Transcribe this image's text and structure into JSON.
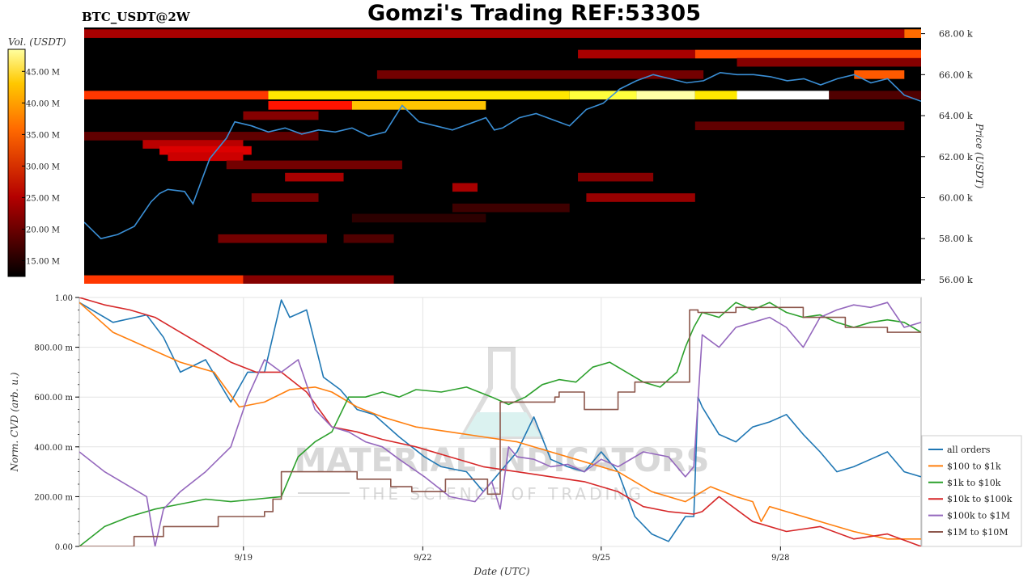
{
  "header": {
    "symbol_label": "BTC_USDT@2W",
    "title": "Gomzi's Trading REF:53305"
  },
  "colorbar": {
    "label": "Vol. (USDT)",
    "ticks": [
      "45.00 M",
      "40.00 M",
      "35.00 M",
      "30.00 M",
      "25.00 M",
      "20.00 M",
      "15.00 M"
    ],
    "tick_values": [
      45,
      40,
      35,
      30,
      25,
      20,
      15
    ],
    "range": [
      12.5,
      48.5
    ]
  },
  "watermark": {
    "line1": "MATERIAL INDICATORS",
    "line2": "THE SCIENCE OF TRADING"
  },
  "chart_data": [
    {
      "type": "heatmap",
      "title": "",
      "ylabel": "Price (USDT)",
      "ylim": [
        55.8,
        68.3
      ],
      "y_tick_labels": [
        "68.00 k",
        "66.00 k",
        "64.00 k",
        "62.00 k",
        "60.00 k",
        "58.00 k",
        "56.00 k"
      ],
      "y_tick_values": [
        68,
        66,
        64,
        62,
        60,
        58,
        56
      ],
      "colormap": "hot",
      "bands": [
        {
          "price": 68.0,
          "from": 0.0,
          "to": 0.98,
          "vol": 22
        },
        {
          "price": 68.0,
          "from": 0.98,
          "to": 1.0,
          "vol": 33
        },
        {
          "price": 67.0,
          "from": 0.59,
          "to": 0.73,
          "vol": 22
        },
        {
          "price": 67.0,
          "from": 0.73,
          "to": 1.0,
          "vol": 31
        },
        {
          "price": 66.6,
          "from": 0.78,
          "to": 1.0,
          "vol": 20
        },
        {
          "price": 66.0,
          "from": 0.35,
          "to": 0.74,
          "vol": 19
        },
        {
          "price": 66.0,
          "from": 0.92,
          "to": 0.98,
          "vol": 32
        },
        {
          "price": 65.0,
          "from": 0.0,
          "to": 0.22,
          "vol": 30
        },
        {
          "price": 65.0,
          "from": 0.22,
          "to": 0.58,
          "vol": 40
        },
        {
          "price": 65.0,
          "from": 0.58,
          "to": 0.66,
          "vol": 43
        },
        {
          "price": 65.0,
          "from": 0.66,
          "to": 0.73,
          "vol": 46
        },
        {
          "price": 65.0,
          "from": 0.73,
          "to": 0.78,
          "vol": 40
        },
        {
          "price": 65.0,
          "from": 0.78,
          "to": 0.89,
          "vol": 48.5
        },
        {
          "price": 65.0,
          "from": 0.89,
          "to": 1.0,
          "vol": 17
        },
        {
          "price": 64.5,
          "from": 0.22,
          "to": 0.32,
          "vol": 28
        },
        {
          "price": 64.5,
          "from": 0.32,
          "to": 0.48,
          "vol": 38
        },
        {
          "price": 64.0,
          "from": 0.19,
          "to": 0.28,
          "vol": 20
        },
        {
          "price": 63.5,
          "from": 0.73,
          "to": 0.98,
          "vol": 18
        },
        {
          "price": 63.0,
          "from": 0.0,
          "to": 0.28,
          "vol": 18
        },
        {
          "price": 62.6,
          "from": 0.07,
          "to": 0.19,
          "vol": 23
        },
        {
          "price": 62.3,
          "from": 0.09,
          "to": 0.2,
          "vol": 25
        },
        {
          "price": 62.0,
          "from": 0.1,
          "to": 0.19,
          "vol": 24
        },
        {
          "price": 61.6,
          "from": 0.17,
          "to": 0.38,
          "vol": 19
        },
        {
          "price": 61.0,
          "from": 0.24,
          "to": 0.31,
          "vol": 22
        },
        {
          "price": 61.0,
          "from": 0.59,
          "to": 0.68,
          "vol": 20
        },
        {
          "price": 60.5,
          "from": 0.44,
          "to": 0.47,
          "vol": 22
        },
        {
          "price": 60.0,
          "from": 0.2,
          "to": 0.28,
          "vol": 19
        },
        {
          "price": 60.0,
          "from": 0.6,
          "to": 0.73,
          "vol": 21
        },
        {
          "price": 59.5,
          "from": 0.44,
          "to": 0.58,
          "vol": 16
        },
        {
          "price": 59.0,
          "from": 0.32,
          "to": 0.48,
          "vol": 15
        },
        {
          "price": 58.0,
          "from": 0.16,
          "to": 0.29,
          "vol": 19
        },
        {
          "price": 58.0,
          "from": 0.31,
          "to": 0.37,
          "vol": 17
        },
        {
          "price": 56.0,
          "from": 0.0,
          "to": 0.19,
          "vol": 30
        },
        {
          "price": 56.0,
          "from": 0.19,
          "to": 0.37,
          "vol": 20
        }
      ],
      "price_line": {
        "x": [
          0.0,
          0.02,
          0.04,
          0.06,
          0.08,
          0.09,
          0.1,
          0.12,
          0.13,
          0.15,
          0.17,
          0.18,
          0.2,
          0.22,
          0.24,
          0.26,
          0.28,
          0.3,
          0.32,
          0.34,
          0.36,
          0.38,
          0.4,
          0.42,
          0.44,
          0.46,
          0.48,
          0.49,
          0.5,
          0.52,
          0.54,
          0.56,
          0.58,
          0.6,
          0.62,
          0.64,
          0.66,
          0.68,
          0.7,
          0.72,
          0.74,
          0.76,
          0.78,
          0.8,
          0.82,
          0.84,
          0.86,
          0.88,
          0.9,
          0.92,
          0.94,
          0.96,
          0.98,
          1.0
        ],
        "y": [
          58.8,
          58.0,
          58.2,
          58.6,
          59.8,
          60.2,
          60.4,
          60.3,
          59.7,
          61.9,
          62.9,
          63.7,
          63.5,
          63.2,
          63.4,
          63.1,
          63.3,
          63.2,
          63.4,
          63.0,
          63.2,
          64.5,
          63.7,
          63.5,
          63.3,
          63.6,
          63.9,
          63.3,
          63.4,
          63.9,
          64.1,
          63.8,
          63.5,
          64.3,
          64.6,
          65.3,
          65.7,
          66.0,
          65.8,
          65.6,
          65.7,
          66.1,
          66.0,
          66.0,
          65.9,
          65.7,
          65.8,
          65.5,
          65.8,
          66.0,
          65.6,
          65.8,
          65.0,
          64.7
        ]
      }
    },
    {
      "type": "line",
      "title": "",
      "xlabel": "Date (UTC)",
      "ylabel": "Norm. CVD (arb. u.)",
      "ylim": [
        0,
        1
      ],
      "y_tick_labels": [
        "1.00",
        "800.00 m",
        "600.00 m",
        "400.00 m",
        "200.00 m",
        "0.00"
      ],
      "y_tick_values": [
        1.0,
        0.8,
        0.6,
        0.4,
        0.2,
        0.0
      ],
      "x_tick_labels": [
        "9/19",
        "9/22",
        "9/25",
        "9/28"
      ],
      "x_tick_values": [
        0.195,
        0.408,
        0.62,
        0.833
      ],
      "grid": true,
      "legend_position": "bottom-right",
      "categories_note": "",
      "series": [
        {
          "name": "all orders",
          "color": "#1f77b4",
          "x": [
            0.0,
            0.04,
            0.08,
            0.1,
            0.12,
            0.15,
            0.18,
            0.2,
            0.22,
            0.24,
            0.25,
            0.27,
            0.29,
            0.31,
            0.33,
            0.35,
            0.38,
            0.41,
            0.43,
            0.46,
            0.48,
            0.5,
            0.52,
            0.54,
            0.56,
            0.58,
            0.6,
            0.62,
            0.64,
            0.66,
            0.68,
            0.7,
            0.72,
            0.73,
            0.735,
            0.74,
            0.76,
            0.78,
            0.8,
            0.82,
            0.84,
            0.86,
            0.88,
            0.9,
            0.92,
            0.94,
            0.96,
            0.98,
            1.0
          ],
          "y": [
            0.98,
            0.9,
            0.93,
            0.84,
            0.7,
            0.75,
            0.58,
            0.7,
            0.7,
            0.99,
            0.92,
            0.95,
            0.68,
            0.63,
            0.55,
            0.53,
            0.44,
            0.36,
            0.32,
            0.3,
            0.22,
            0.3,
            0.38,
            0.52,
            0.35,
            0.32,
            0.3,
            0.38,
            0.3,
            0.12,
            0.05,
            0.02,
            0.12,
            0.12,
            0.6,
            0.56,
            0.45,
            0.42,
            0.48,
            0.5,
            0.53,
            0.45,
            0.38,
            0.3,
            0.32,
            0.35,
            0.38,
            0.3,
            0.28
          ]
        },
        {
          "name": "$100 to $1k",
          "color": "#ff7f0e",
          "x": [
            0.0,
            0.04,
            0.08,
            0.12,
            0.16,
            0.19,
            0.22,
            0.25,
            0.28,
            0.3,
            0.33,
            0.36,
            0.4,
            0.44,
            0.48,
            0.52,
            0.56,
            0.6,
            0.64,
            0.68,
            0.72,
            0.75,
            0.78,
            0.8,
            0.81,
            0.82,
            0.84,
            0.88,
            0.92,
            0.96,
            1.0
          ],
          "y": [
            0.98,
            0.86,
            0.8,
            0.74,
            0.7,
            0.56,
            0.58,
            0.63,
            0.64,
            0.62,
            0.56,
            0.52,
            0.48,
            0.46,
            0.44,
            0.42,
            0.38,
            0.34,
            0.3,
            0.22,
            0.18,
            0.24,
            0.2,
            0.18,
            0.1,
            0.16,
            0.14,
            0.1,
            0.06,
            0.03,
            0.03
          ]
        },
        {
          "name": "$1k to $10k",
          "color": "#2ca02c",
          "x": [
            0.0,
            0.03,
            0.06,
            0.09,
            0.12,
            0.15,
            0.18,
            0.21,
            0.24,
            0.26,
            0.28,
            0.3,
            0.32,
            0.34,
            0.36,
            0.38,
            0.4,
            0.43,
            0.46,
            0.49,
            0.51,
            0.53,
            0.55,
            0.57,
            0.59,
            0.61,
            0.63,
            0.65,
            0.67,
            0.69,
            0.71,
            0.72,
            0.73,
            0.74,
            0.76,
            0.78,
            0.8,
            0.82,
            0.84,
            0.86,
            0.88,
            0.9,
            0.92,
            0.94,
            0.96,
            0.98,
            1.0
          ],
          "y": [
            0.0,
            0.08,
            0.12,
            0.15,
            0.17,
            0.19,
            0.18,
            0.19,
            0.2,
            0.36,
            0.42,
            0.46,
            0.6,
            0.6,
            0.62,
            0.6,
            0.63,
            0.62,
            0.64,
            0.6,
            0.57,
            0.6,
            0.65,
            0.67,
            0.66,
            0.72,
            0.74,
            0.7,
            0.66,
            0.64,
            0.7,
            0.8,
            0.88,
            0.94,
            0.92,
            0.98,
            0.95,
            0.98,
            0.94,
            0.92,
            0.93,
            0.9,
            0.88,
            0.9,
            0.91,
            0.9,
            0.86
          ]
        },
        {
          "name": "$10k to $100k",
          "color": "#d62728",
          "x": [
            0.0,
            0.03,
            0.06,
            0.09,
            0.12,
            0.15,
            0.18,
            0.21,
            0.24,
            0.27,
            0.3,
            0.33,
            0.36,
            0.4,
            0.44,
            0.48,
            0.52,
            0.56,
            0.6,
            0.64,
            0.67,
            0.7,
            0.73,
            0.74,
            0.76,
            0.8,
            0.84,
            0.88,
            0.92,
            0.96,
            1.0
          ],
          "y": [
            1.0,
            0.97,
            0.95,
            0.92,
            0.86,
            0.8,
            0.74,
            0.7,
            0.7,
            0.62,
            0.48,
            0.46,
            0.43,
            0.4,
            0.36,
            0.32,
            0.3,
            0.28,
            0.26,
            0.22,
            0.16,
            0.14,
            0.13,
            0.14,
            0.2,
            0.1,
            0.06,
            0.08,
            0.03,
            0.05,
            0.0
          ]
        },
        {
          "name": "$100k to $1M",
          "color": "#9467bd",
          "x": [
            0.0,
            0.03,
            0.06,
            0.08,
            0.09,
            0.1,
            0.12,
            0.15,
            0.18,
            0.2,
            0.22,
            0.24,
            0.26,
            0.28,
            0.3,
            0.32,
            0.34,
            0.36,
            0.38,
            0.41,
            0.44,
            0.47,
            0.49,
            0.5,
            0.51,
            0.52,
            0.54,
            0.56,
            0.58,
            0.6,
            0.62,
            0.64,
            0.67,
            0.7,
            0.72,
            0.73,
            0.74,
            0.76,
            0.78,
            0.8,
            0.82,
            0.84,
            0.86,
            0.88,
            0.9,
            0.92,
            0.94,
            0.96,
            0.98,
            1.0
          ],
          "y": [
            0.38,
            0.3,
            0.24,
            0.2,
            0.0,
            0.15,
            0.22,
            0.3,
            0.4,
            0.6,
            0.75,
            0.7,
            0.75,
            0.55,
            0.48,
            0.46,
            0.42,
            0.4,
            0.35,
            0.28,
            0.2,
            0.18,
            0.26,
            0.15,
            0.4,
            0.36,
            0.35,
            0.32,
            0.33,
            0.3,
            0.35,
            0.32,
            0.38,
            0.36,
            0.28,
            0.32,
            0.85,
            0.8,
            0.88,
            0.9,
            0.92,
            0.88,
            0.8,
            0.92,
            0.95,
            0.97,
            0.96,
            0.98,
            0.88,
            0.9
          ]
        },
        {
          "name": "$1M to $10M",
          "color": "#8c564b",
          "x": [
            0.0,
            0.065,
            0.065,
            0.1,
            0.1,
            0.165,
            0.165,
            0.22,
            0.22,
            0.23,
            0.23,
            0.24,
            0.24,
            0.33,
            0.33,
            0.37,
            0.37,
            0.395,
            0.395,
            0.435,
            0.435,
            0.485,
            0.485,
            0.5,
            0.5,
            0.565,
            0.565,
            0.57,
            0.57,
            0.6,
            0.6,
            0.64,
            0.64,
            0.66,
            0.66,
            0.725,
            0.725,
            0.735,
            0.735,
            0.78,
            0.78,
            0.86,
            0.86,
            0.91,
            0.91,
            0.96,
            0.96,
            1.0
          ],
          "y": [
            0.0,
            0.0,
            0.04,
            0.04,
            0.08,
            0.08,
            0.12,
            0.12,
            0.14,
            0.14,
            0.19,
            0.19,
            0.3,
            0.3,
            0.27,
            0.27,
            0.24,
            0.24,
            0.22,
            0.22,
            0.27,
            0.27,
            0.21,
            0.21,
            0.58,
            0.58,
            0.6,
            0.6,
            0.62,
            0.62,
            0.55,
            0.55,
            0.62,
            0.62,
            0.66,
            0.66,
            0.95,
            0.95,
            0.94,
            0.94,
            0.96,
            0.96,
            0.92,
            0.92,
            0.88,
            0.88,
            0.86,
            0.86
          ]
        }
      ]
    }
  ]
}
